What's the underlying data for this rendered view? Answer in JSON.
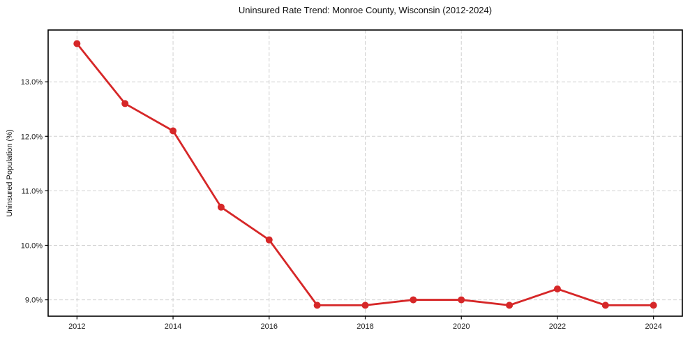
{
  "chart_data": {
    "type": "line",
    "title": "Uninsured Rate Trend: Monroe County, Wisconsin (2012-2024)",
    "xlabel": "",
    "ylabel": "Uninsured Population (%)",
    "x": [
      2012,
      2013,
      2014,
      2015,
      2016,
      2017,
      2018,
      2019,
      2020,
      2021,
      2022,
      2023,
      2024
    ],
    "series": [
      {
        "name": "Uninsured Population (%)",
        "values": [
          13.7,
          12.6,
          12.1,
          10.7,
          10.1,
          8.9,
          8.9,
          9.0,
          9.0,
          8.9,
          9.2,
          8.9,
          8.9
        ]
      }
    ],
    "xticks": {
      "values": [
        2012,
        2014,
        2016,
        2018,
        2020,
        2022,
        2024
      ],
      "labels": [
        "2012",
        "2014",
        "2016",
        "2018",
        "2020",
        "2022",
        "2024"
      ]
    },
    "yticks": {
      "values": [
        9,
        10,
        11,
        12,
        13
      ],
      "labels": [
        "9.0%",
        "10.0%",
        "11.0%",
        "12.0%",
        "13.0%"
      ]
    },
    "xlim": [
      2011.4,
      2024.6
    ],
    "ylim": [
      8.7,
      13.95
    ],
    "grid": true,
    "grid_style": "dashed",
    "legend": "none",
    "colors": {
      "line": "#d62728",
      "marker": "#d62728",
      "grid": "#d0d0d0",
      "frame": "#000000",
      "tick_label": "#1a1a1a",
      "background": "#ffffff"
    }
  }
}
